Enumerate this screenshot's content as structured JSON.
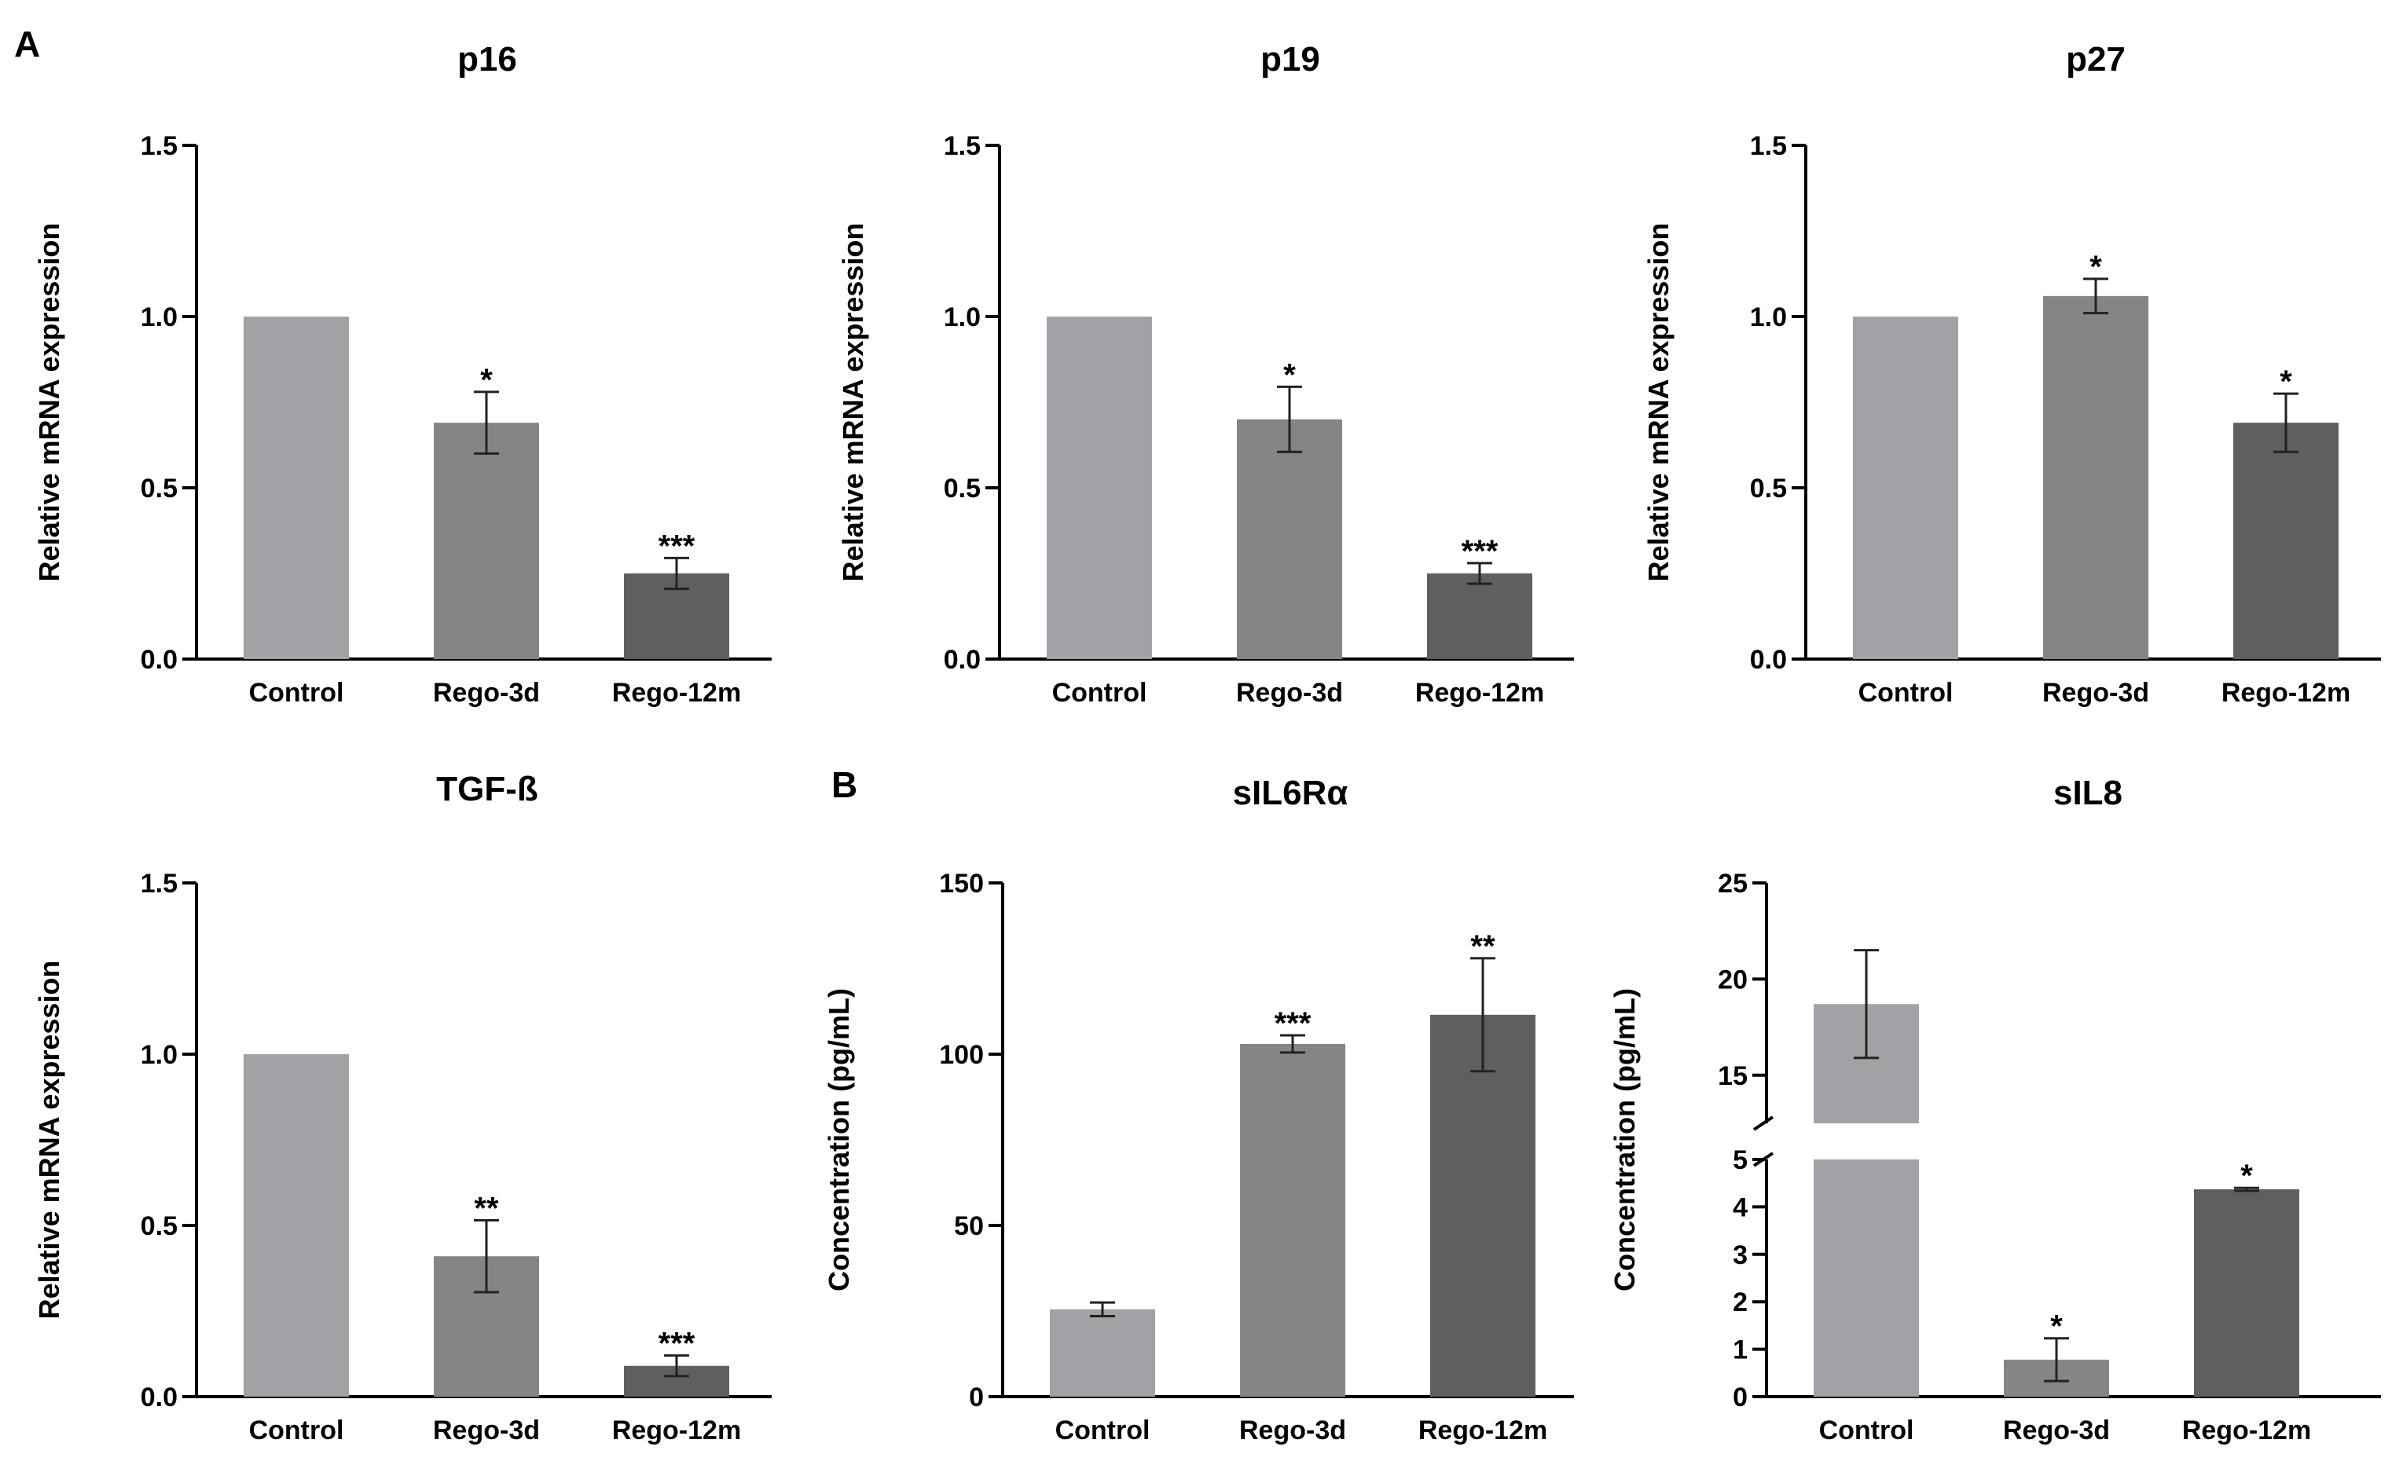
{
  "panel_labels": [
    "A",
    "B"
  ],
  "colors": {
    "control": "#a1a1a6",
    "rego3d": "#858585",
    "rego12m": "#5f5f5f",
    "axis": "#000000"
  },
  "chart_data": [
    {
      "type": "bar",
      "title": "p16",
      "ylabel": "Relative mRNA expression",
      "categories": [
        "Control",
        "Rego-3d",
        "Rego-12m"
      ],
      "values": [
        1.0,
        0.69,
        0.25
      ],
      "errors": [
        0,
        0.09,
        0.045
      ],
      "significance": [
        "",
        "*",
        "***"
      ],
      "ylim": [
        0,
        1.5
      ],
      "yticks": [
        0,
        0.5,
        1.0,
        1.5
      ],
      "ytick_labels": [
        "0.0",
        "0.5",
        "1.0",
        "1.5"
      ],
      "grid": false
    },
    {
      "type": "bar",
      "title": "p19",
      "ylabel": "Relative mRNA expression",
      "categories": [
        "Control",
        "Rego-3d",
        "Rego-12m"
      ],
      "values": [
        1.0,
        0.7,
        0.25
      ],
      "errors": [
        0,
        0.095,
        0.03
      ],
      "significance": [
        "",
        "*",
        "***"
      ],
      "ylim": [
        0,
        1.5
      ],
      "yticks": [
        0,
        0.5,
        1.0,
        1.5
      ],
      "ytick_labels": [
        "0.0",
        "0.5",
        "1.0",
        "1.5"
      ],
      "grid": false
    },
    {
      "type": "bar",
      "title": "p27",
      "ylabel": "Relative mRNA expression",
      "categories": [
        "Control",
        "Rego-3d",
        "Rego-12m"
      ],
      "values": [
        1.0,
        1.06,
        0.69
      ],
      "errors": [
        0,
        0.05,
        0.085
      ],
      "significance": [
        "",
        "*",
        "*"
      ],
      "ylim": [
        0,
        1.5
      ],
      "yticks": [
        0,
        0.5,
        1.0,
        1.5
      ],
      "ytick_labels": [
        "0.0",
        "0.5",
        "1.0",
        "1.5"
      ],
      "grid": false
    },
    {
      "type": "bar",
      "title": "TGF-ß",
      "ylabel": "Relative mRNA expression",
      "categories": [
        "Control",
        "Rego-3d",
        "Rego-12m"
      ],
      "values": [
        1.0,
        0.41,
        0.09
      ],
      "errors": [
        0,
        0.105,
        0.03
      ],
      "significance": [
        "",
        "**",
        "***"
      ],
      "ylim": [
        0,
        1.5
      ],
      "yticks": [
        0,
        0.5,
        1.0,
        1.5
      ],
      "ytick_labels": [
        "0.0",
        "0.5",
        "1.0",
        "1.5"
      ],
      "grid": false
    },
    {
      "type": "bar",
      "title": "sIL6Rα",
      "ylabel": "Concentration (pg/mL)",
      "categories": [
        "Control",
        "Rego-3d",
        "Rego-12m"
      ],
      "values": [
        25.5,
        103,
        111.5
      ],
      "errors": [
        2,
        2.5,
        16.5
      ],
      "significance": [
        "",
        "***",
        "**"
      ],
      "ylim": [
        0,
        150
      ],
      "yticks": [
        0,
        50,
        100,
        150
      ],
      "ytick_labels": [
        "0",
        "50",
        "100",
        "150"
      ],
      "grid": false
    },
    {
      "type": "bar",
      "title": "sIL8",
      "ylabel": "Concentration (pg/mL)",
      "categories": [
        "Control",
        "Rego-3d",
        "Rego-12m"
      ],
      "values": [
        18.7,
        0.78,
        4.37
      ],
      "errors": [
        2.8,
        0.45,
        0.03
      ],
      "significance": [
        "",
        "*",
        "*"
      ],
      "broken_axis": true,
      "ylim_lower": [
        0,
        5
      ],
      "yticks_lower": [
        0,
        1,
        2,
        3,
        4,
        5
      ],
      "ylim_upper": [
        12.5,
        25
      ],
      "yticks_upper": [
        15,
        20,
        25
      ],
      "ytick_labels_lower": [
        "0",
        "1",
        "2",
        "3",
        "4",
        "5"
      ],
      "ytick_labels_upper": [
        "15",
        "20",
        "25"
      ],
      "grid": false
    }
  ]
}
